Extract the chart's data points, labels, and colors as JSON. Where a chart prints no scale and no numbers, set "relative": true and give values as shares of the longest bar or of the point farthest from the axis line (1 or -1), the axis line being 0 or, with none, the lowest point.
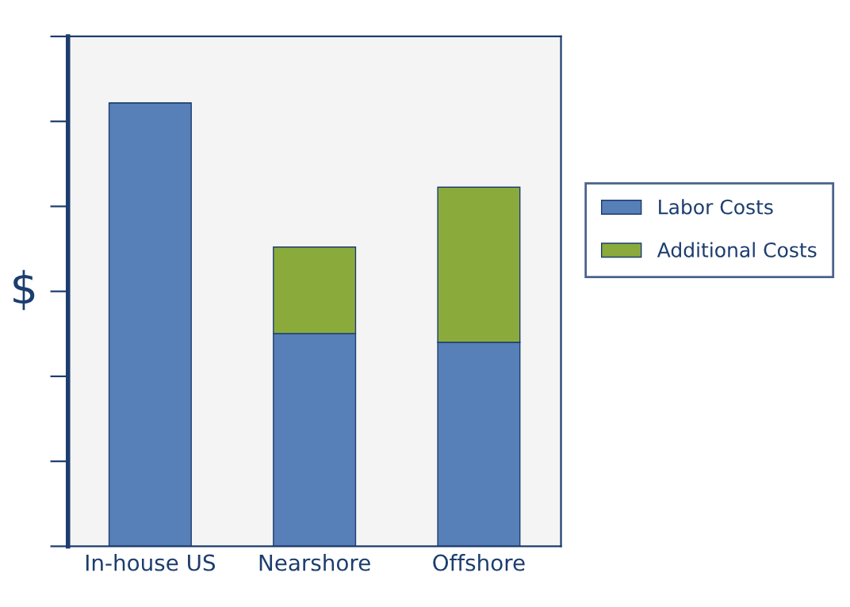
{
  "chart_data": {
    "type": "bar",
    "stacked": true,
    "relative": true,
    "ylabel": "$",
    "categories": [
      "In-house US",
      "Nearshore",
      "Offshore"
    ],
    "series": [
      {
        "name": "Labor Costs",
        "color": "#577fb8",
        "values": [
          1,
          0.48,
          0.46
        ]
      },
      {
        "name": "Additional Costs",
        "color": "#8aab3c",
        "values": [
          null,
          0.195,
          0.35
        ]
      }
    ],
    "legend": "right"
  }
}
